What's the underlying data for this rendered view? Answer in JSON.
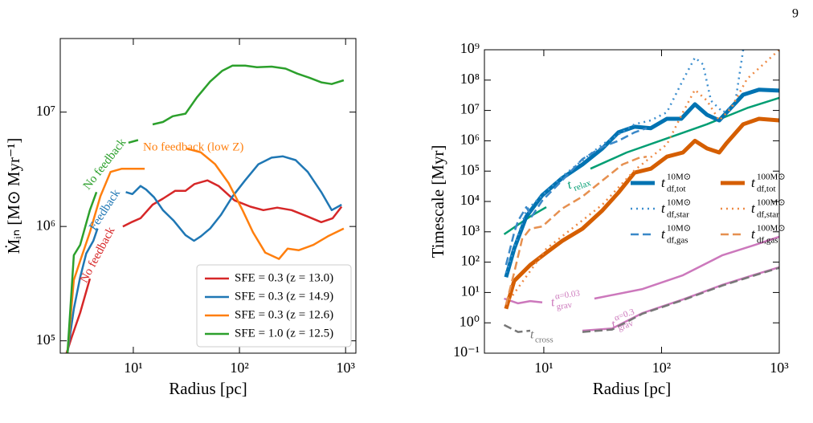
{
  "page_number": "9",
  "chart_data": [
    {
      "type": "line",
      "xscale": "log",
      "yscale": "log",
      "grid": false,
      "legend": "lower right",
      "xlabel": "Radius [pc]",
      "ylabel": "Ṁᵢₙ [M⊙ Myr⁻¹]",
      "xlim": [
        2.05,
        1250
      ],
      "ylim": [
        78000,
        44000000
      ],
      "xticks": [
        {
          "value": 10,
          "label": "10¹"
        },
        {
          "value": 100,
          "label": "10²"
        },
        {
          "value": 1000,
          "label": "10³"
        }
      ],
      "yticks": [
        {
          "value": 100000,
          "label": "10⁵"
        },
        {
          "value": 1000000,
          "label": "10⁶"
        },
        {
          "value": 10000000,
          "label": "10⁷"
        }
      ],
      "series": [
        {
          "name": "SFE = 0.3 (z = 13.0)",
          "color": "#d62728",
          "linestyle": "solid",
          "linewidth": 2.5,
          "x": [
            2.35,
            2.65,
            3.16,
            3.9,
            5.5,
            7.97,
            9.8,
            11.7,
            15.2,
            19,
            24.8,
            31,
            37.7,
            50,
            63.6,
            90,
            127,
            168,
            227,
            310,
            440,
            590,
            755,
            916
          ],
          "values": [
            78000,
            110000,
            176000,
            350000,
            null,
            1000000,
            1100000,
            1180000,
            1550000,
            1750000,
            2050000,
            2050000,
            2350000,
            2530000,
            2260000,
            1690000,
            1490000,
            1390000,
            1460000,
            1390000,
            1220000,
            1090000,
            1180000,
            1490000
          ]
        },
        {
          "name": "SFE = 0.3 (z = 14.9)",
          "color": "#1f77b4",
          "linestyle": "solid",
          "linewidth": 2.5,
          "x": [
            2.4,
            2.75,
            3.16,
            3.6,
            4.2,
            4.6,
            6.5,
            8.5,
            9.8,
            11.7,
            13.2,
            15.7,
            19,
            23.9,
            31,
            37.3,
            43.3,
            53,
            66.8,
            86,
            113,
            151,
            201,
            257,
            338,
            440,
            590,
            740,
            916
          ],
          "values": [
            78000,
            190000,
            360000,
            580000,
            750000,
            960000,
            null,
            2000000,
            1920000,
            2260000,
            2100000,
            1800000,
            1390000,
            1130000,
            840000,
            750000,
            820000,
            960000,
            1260000,
            1830000,
            2530000,
            3500000,
            4000000,
            4100000,
            3800000,
            3000000,
            2000000,
            1390000,
            1550000
          ]
        },
        {
          "name": "SFE = 0.3 (z = 12.6)",
          "color": "#ff7f0e",
          "linestyle": "solid",
          "linewidth": 2.5,
          "x": [
            2.4,
            2.75,
            3.16,
            3.9,
            4.9,
            6.1,
            7.8,
            9.0,
            10.7,
            12.8,
            20,
            31.6,
            43.3,
            59,
            79,
            107,
            134,
            175,
            236,
            284,
            363,
            497,
            680,
            960
          ],
          "values": [
            78000,
            340000,
            500000,
            890000,
            1840000,
            3000000,
            3200000,
            3200000,
            3200000,
            3200000,
            null,
            4800000,
            4450000,
            3500000,
            2400000,
            1390000,
            890000,
            590000,
            520000,
            640000,
            620000,
            690000,
            820000,
            960000
          ]
        },
        {
          "name": "SFE = 1.0 (z = 12.5)",
          "color": "#2ca02c",
          "linestyle": "solid",
          "linewidth": 2.5,
          "x": [
            2.4,
            2.75,
            3.16,
            3.9,
            4.5,
            7,
            9.0,
            11.1,
            13,
            15.2,
            19,
            23.5,
            31,
            39.6,
            53,
            69,
            86,
            113,
            146,
            201,
            272,
            350,
            455,
            590,
            740,
            960
          ],
          "values": [
            78000,
            560000,
            690000,
            1390000,
            2000000,
            null,
            5400000,
            5700000,
            null,
            7800000,
            8200000,
            9200000,
            9700000,
            13400000,
            18500000,
            23000000,
            25500000,
            25500000,
            24700000,
            25000000,
            24000000,
            21700000,
            20000000,
            18200000,
            17600000,
            19000000
          ]
        }
      ],
      "annotations": [
        {
          "text": "No feedback",
          "color": "#d62728"
        },
        {
          "text": "Feedback",
          "color": "#1f77b4"
        },
        {
          "text": "No feedback",
          "color": "#2ca02c"
        },
        {
          "text": "No feedback (low Z)",
          "color": "#ff7f0e"
        }
      ]
    },
    {
      "type": "line",
      "xscale": "log",
      "yscale": "log",
      "grid": false,
      "legend": "upper center",
      "xlabel": "Radius [pc]",
      "ylabel": "Timescale [Myr]",
      "xlim": [
        3.13,
        1000
      ],
      "ylim": [
        0.1,
        1000000000
      ],
      "xticks": [
        {
          "value": 10,
          "label": "10¹"
        },
        {
          "value": 100,
          "label": "10²"
        },
        {
          "value": 1000,
          "label": "10³"
        }
      ],
      "yticks": [
        {
          "value": 0.1,
          "label": "10⁻¹"
        },
        {
          "value": 1,
          "label": "10⁰"
        },
        {
          "value": 10,
          "label": "10¹"
        },
        {
          "value": 100,
          "label": "10²"
        },
        {
          "value": 1000,
          "label": "10³"
        },
        {
          "value": 10000,
          "label": "10⁴"
        },
        {
          "value": 100000,
          "label": "10⁵"
        },
        {
          "value": 1000000,
          "label": "10⁶"
        },
        {
          "value": 10000000,
          "label": "10⁷"
        },
        {
          "value": 100000000,
          "label": "10⁸"
        },
        {
          "value": 1000000000,
          "label": "10⁹"
        }
      ],
      "series": [
        {
          "color": "#029e73",
          "linestyle": "solid",
          "linewidth": 2.5,
          "x": [
            4.6,
            7.66,
            10.5,
            17,
            24.9,
            50.5,
            111,
            243,
            533,
            1000
          ],
          "values": [
            830,
            3200,
            6500,
            null,
            120000,
            410000,
            1200000,
            3500000,
            12000000,
            26000000
          ]
        },
        {
          "color": "#cc78bc",
          "linestyle": "solid",
          "linewidth": 2.5,
          "x": [
            4.6,
            6.05,
            7.66,
            9.7,
            18,
            26.9,
            69,
            152,
            330,
            623,
            1000
          ],
          "values": [
            6.3,
            4.4,
            5.2,
            4.7,
            null,
            6.3,
            13,
            37,
            170,
            370,
            690
          ]
        },
        {
          "color": "#cc78bc",
          "linestyle": "solid",
          "linewidth": 2.5,
          "x": [
            21.3,
            38,
            69,
            152,
            330,
            623,
            1000
          ],
          "values": [
            0.55,
            0.65,
            2.1,
            5.9,
            18,
            39,
            68
          ]
        },
        {
          "color": "#777777",
          "linestyle": "dashed",
          "linewidth": 2.5,
          "x": [
            4.6,
            6.05,
            7.66,
            12,
            21.3,
            38,
            69,
            152,
            330,
            623,
            1000
          ],
          "values": [
            0.85,
            0.5,
            0.55,
            null,
            0.5,
            0.6,
            2.0,
            5.6,
            17,
            37,
            65
          ]
        },
        {
          "name": "t",
          "name_sup": "10M⊙",
          "name_sub": "df,tot",
          "color": "#0173b2",
          "linestyle": "solid",
          "linewidth": 5,
          "x": [
            4.78,
            5.6,
            7.1,
            9.7,
            14.3,
            21.3,
            31.5,
            43,
            59,
            81,
            111,
            147,
            192,
            243,
            309,
            358,
            494,
            672,
            1000
          ],
          "values": [
            32,
            275,
            3160,
            16000,
            59000,
            166000,
            560000,
            1900000,
            2900000,
            2600000,
            5300000,
            5300000,
            16000000,
            7200000,
            4700000,
            8700000,
            33000000,
            48000000,
            45000000
          ]
        },
        {
          "name": "t",
          "name_sup": "100M⊙",
          "name_sub": "df,tot",
          "color": "#d55e00",
          "linestyle": "solid",
          "linewidth": 5,
          "x": [
            4.78,
            5.6,
            7.66,
            10.5,
            14.3,
            21.3,
            31.5,
            43,
            59,
            81,
            111,
            152,
            192,
            243,
            309,
            358,
            494,
            672,
            1000
          ],
          "values": [
            2.9,
            24,
            81,
            204,
            500,
            1260,
            5100,
            19500,
            89000,
            120000,
            300000,
            410000,
            1000000,
            560000,
            410000,
            850000,
            3500000,
            5300000,
            4700000
          ]
        },
        {
          "name": "t",
          "name_sup": "10M⊙",
          "name_sub": "df,star",
          "color": "#3d8fcf",
          "linestyle": "dotted",
          "linewidth": 2.5,
          "x": [
            4.78,
            7.1,
            14.3,
            31.5,
            59,
            81,
            111,
            152,
            192,
            225,
            263,
            333,
            421,
            494
          ],
          "values": [
            45,
            5100,
            66000,
            760000,
            3500000,
            4700000,
            8700000,
            100000000,
            550000000,
            330000000,
            21000000,
            8700000,
            16000000,
            1000000000
          ]
        },
        {
          "name": "t",
          "name_sup": "100M⊙",
          "name_sub": "df,star",
          "color": "#ee8a45",
          "linestyle": "dotted",
          "linewidth": 2.5,
          "x": [
            4.78,
            10.5,
            31.5,
            59,
            111,
            152,
            192,
            243,
            309,
            390,
            533,
            731,
            1000
          ],
          "values": [
            4,
            275,
            7900,
            107000,
            760000,
            8700000,
            48000000,
            21000000,
            4700000,
            12000000,
            110000000,
            330000000,
            1000000000
          ]
        },
        {
          "name": "t",
          "name_sup": "10M⊙",
          "name_sub": "df,gas",
          "color": "#3a88c8",
          "linestyle": "dashed",
          "linewidth": 2.5,
          "x": [
            4.78,
            5.6,
            6.05,
            7.1,
            7.9,
            9.7,
            14.3,
            21.3,
            31.5,
            43,
            59,
            74.8
          ],
          "values": [
            81,
            930,
            2300,
            6500,
            3200,
            10700,
            49000,
            250000,
            630000,
            1000000,
            1900000,
            2600000
          ]
        },
        {
          "name": "t",
          "name_sup": "100M⊙",
          "name_sub": "df,gas",
          "color": "#e69050",
          "linestyle": "dashed",
          "linewidth": 2.5,
          "x": [
            4.78,
            5.6,
            6.55,
            7.66,
            9.7,
            14.3,
            21.3,
            31.5,
            46.6,
            63.8,
            74.8
          ],
          "values": [
            4,
            45,
            580,
            1260,
            1500,
            5800,
            14500,
            49000,
            166000,
            270000,
            300000
          ]
        }
      ],
      "annotations": [
        {
          "text": "t",
          "sub": "relax",
          "color": "#029e73"
        },
        {
          "text": "t",
          "sup": "α=0.03",
          "sub": "grav",
          "color": "#cc78bc"
        },
        {
          "text": "t",
          "sub": "cross",
          "color": "#777777"
        },
        {
          "text": "t",
          "sup": "α=0.3",
          "sub": "grav",
          "color": "#cc78bc"
        }
      ]
    }
  ]
}
